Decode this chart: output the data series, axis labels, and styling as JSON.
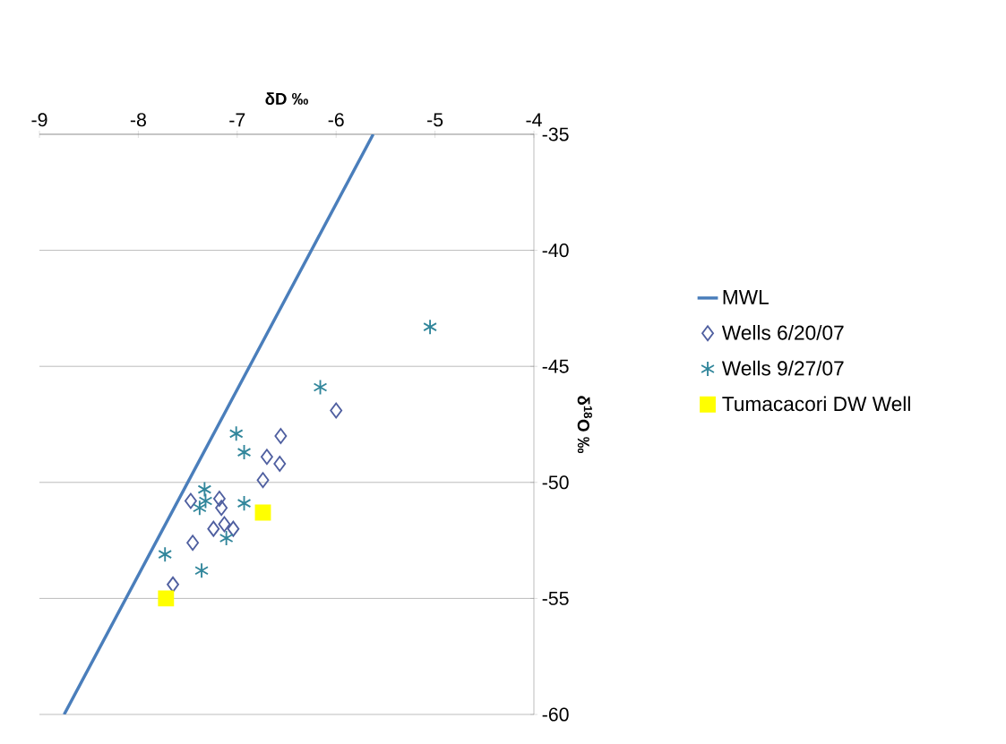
{
  "chart_data": {
    "type": "scatter",
    "xlabel": "δD ‰",
    "ylabel": "δ$^{18}$O ‰",
    "xlim": [
      -9,
      -4
    ],
    "xticks": [
      -9,
      -8,
      -7,
      -6,
      -5,
      -4
    ],
    "ylim": [
      -60,
      -35
    ],
    "yticks": [
      -60,
      -55,
      -50,
      -45,
      -40,
      -35
    ],
    "grid": "y",
    "legend": "right",
    "series": [
      {
        "name": "MWL",
        "type": "line",
        "marker": "none",
        "color": "#4a7ebb",
        "x": [
          -8.75,
          -5.625
        ],
        "values": [
          -60,
          -35
        ]
      },
      {
        "name": "Wells 6/20/07",
        "marker": "diamond",
        "color": "#4f5fa0",
        "x": [
          -6.0,
          -6.56,
          -6.7,
          -6.57,
          -6.74,
          -7.47,
          -7.18,
          -7.16,
          -7.24,
          -7.13,
          -7.04,
          -7.45,
          -7.65
        ],
        "values": [
          -46.9,
          -48.0,
          -48.9,
          -49.2,
          -49.9,
          -50.8,
          -50.7,
          -51.1,
          -52.0,
          -51.8,
          -52.0,
          -52.6,
          -54.4
        ]
      },
      {
        "name": "Wells 9/27/07",
        "marker": "cross",
        "color": "#31869b",
        "x": [
          -5.05,
          -6.16,
          -7.01,
          -6.93,
          -7.33,
          -7.38,
          -6.93,
          -7.11,
          -7.73,
          -7.36,
          -7.32
        ],
        "values": [
          -43.3,
          -45.9,
          -47.9,
          -48.7,
          -50.3,
          -51.1,
          -50.9,
          -52.4,
          -53.1,
          -53.8,
          -50.8
        ]
      },
      {
        "name": "Tumacacori DW Well",
        "marker": "square",
        "color": "#ffff00",
        "x": [
          -6.74,
          -7.72
        ],
        "values": [
          -51.3,
          -55.0
        ]
      }
    ]
  }
}
